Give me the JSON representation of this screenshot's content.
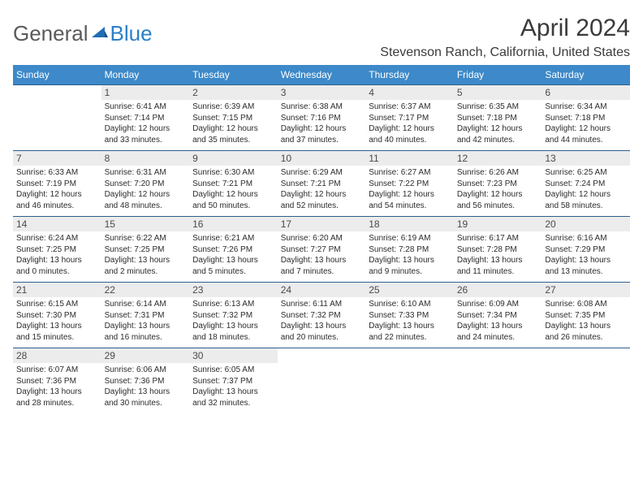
{
  "logo": {
    "text1": "General",
    "text2": "Blue"
  },
  "title": "April 2024",
  "location": "Stevenson Ranch, California, United States",
  "colors": {
    "header_bg": "#3d89c9",
    "header_text": "#ffffff",
    "daynum_bg": "#ececec",
    "daynum_border": "#2d5f8f",
    "body_text": "#2b2b2b",
    "logo_gray": "#5a5a5a",
    "logo_blue": "#2a7fc9"
  },
  "day_headers": [
    "Sunday",
    "Monday",
    "Tuesday",
    "Wednesday",
    "Thursday",
    "Friday",
    "Saturday"
  ],
  "weeks": [
    {
      "nums": [
        "",
        "1",
        "2",
        "3",
        "4",
        "5",
        "6"
      ],
      "cells": [
        null,
        {
          "sr": "Sunrise: 6:41 AM",
          "ss": "Sunset: 7:14 PM",
          "d1": "Daylight: 12 hours",
          "d2": "and 33 minutes."
        },
        {
          "sr": "Sunrise: 6:39 AM",
          "ss": "Sunset: 7:15 PM",
          "d1": "Daylight: 12 hours",
          "d2": "and 35 minutes."
        },
        {
          "sr": "Sunrise: 6:38 AM",
          "ss": "Sunset: 7:16 PM",
          "d1": "Daylight: 12 hours",
          "d2": "and 37 minutes."
        },
        {
          "sr": "Sunrise: 6:37 AM",
          "ss": "Sunset: 7:17 PM",
          "d1": "Daylight: 12 hours",
          "d2": "and 40 minutes."
        },
        {
          "sr": "Sunrise: 6:35 AM",
          "ss": "Sunset: 7:18 PM",
          "d1": "Daylight: 12 hours",
          "d2": "and 42 minutes."
        },
        {
          "sr": "Sunrise: 6:34 AM",
          "ss": "Sunset: 7:18 PM",
          "d1": "Daylight: 12 hours",
          "d2": "and 44 minutes."
        }
      ]
    },
    {
      "nums": [
        "7",
        "8",
        "9",
        "10",
        "11",
        "12",
        "13"
      ],
      "cells": [
        {
          "sr": "Sunrise: 6:33 AM",
          "ss": "Sunset: 7:19 PM",
          "d1": "Daylight: 12 hours",
          "d2": "and 46 minutes."
        },
        {
          "sr": "Sunrise: 6:31 AM",
          "ss": "Sunset: 7:20 PM",
          "d1": "Daylight: 12 hours",
          "d2": "and 48 minutes."
        },
        {
          "sr": "Sunrise: 6:30 AM",
          "ss": "Sunset: 7:21 PM",
          "d1": "Daylight: 12 hours",
          "d2": "and 50 minutes."
        },
        {
          "sr": "Sunrise: 6:29 AM",
          "ss": "Sunset: 7:21 PM",
          "d1": "Daylight: 12 hours",
          "d2": "and 52 minutes."
        },
        {
          "sr": "Sunrise: 6:27 AM",
          "ss": "Sunset: 7:22 PM",
          "d1": "Daylight: 12 hours",
          "d2": "and 54 minutes."
        },
        {
          "sr": "Sunrise: 6:26 AM",
          "ss": "Sunset: 7:23 PM",
          "d1": "Daylight: 12 hours",
          "d2": "and 56 minutes."
        },
        {
          "sr": "Sunrise: 6:25 AM",
          "ss": "Sunset: 7:24 PM",
          "d1": "Daylight: 12 hours",
          "d2": "and 58 minutes."
        }
      ]
    },
    {
      "nums": [
        "14",
        "15",
        "16",
        "17",
        "18",
        "19",
        "20"
      ],
      "cells": [
        {
          "sr": "Sunrise: 6:24 AM",
          "ss": "Sunset: 7:25 PM",
          "d1": "Daylight: 13 hours",
          "d2": "and 0 minutes."
        },
        {
          "sr": "Sunrise: 6:22 AM",
          "ss": "Sunset: 7:25 PM",
          "d1": "Daylight: 13 hours",
          "d2": "and 2 minutes."
        },
        {
          "sr": "Sunrise: 6:21 AM",
          "ss": "Sunset: 7:26 PM",
          "d1": "Daylight: 13 hours",
          "d2": "and 5 minutes."
        },
        {
          "sr": "Sunrise: 6:20 AM",
          "ss": "Sunset: 7:27 PM",
          "d1": "Daylight: 13 hours",
          "d2": "and 7 minutes."
        },
        {
          "sr": "Sunrise: 6:19 AM",
          "ss": "Sunset: 7:28 PM",
          "d1": "Daylight: 13 hours",
          "d2": "and 9 minutes."
        },
        {
          "sr": "Sunrise: 6:17 AM",
          "ss": "Sunset: 7:28 PM",
          "d1": "Daylight: 13 hours",
          "d2": "and 11 minutes."
        },
        {
          "sr": "Sunrise: 6:16 AM",
          "ss": "Sunset: 7:29 PM",
          "d1": "Daylight: 13 hours",
          "d2": "and 13 minutes."
        }
      ]
    },
    {
      "nums": [
        "21",
        "22",
        "23",
        "24",
        "25",
        "26",
        "27"
      ],
      "cells": [
        {
          "sr": "Sunrise: 6:15 AM",
          "ss": "Sunset: 7:30 PM",
          "d1": "Daylight: 13 hours",
          "d2": "and 15 minutes."
        },
        {
          "sr": "Sunrise: 6:14 AM",
          "ss": "Sunset: 7:31 PM",
          "d1": "Daylight: 13 hours",
          "d2": "and 16 minutes."
        },
        {
          "sr": "Sunrise: 6:13 AM",
          "ss": "Sunset: 7:32 PM",
          "d1": "Daylight: 13 hours",
          "d2": "and 18 minutes."
        },
        {
          "sr": "Sunrise: 6:11 AM",
          "ss": "Sunset: 7:32 PM",
          "d1": "Daylight: 13 hours",
          "d2": "and 20 minutes."
        },
        {
          "sr": "Sunrise: 6:10 AM",
          "ss": "Sunset: 7:33 PM",
          "d1": "Daylight: 13 hours",
          "d2": "and 22 minutes."
        },
        {
          "sr": "Sunrise: 6:09 AM",
          "ss": "Sunset: 7:34 PM",
          "d1": "Daylight: 13 hours",
          "d2": "and 24 minutes."
        },
        {
          "sr": "Sunrise: 6:08 AM",
          "ss": "Sunset: 7:35 PM",
          "d1": "Daylight: 13 hours",
          "d2": "and 26 minutes."
        }
      ]
    },
    {
      "nums": [
        "28",
        "29",
        "30",
        "",
        "",
        "",
        ""
      ],
      "cells": [
        {
          "sr": "Sunrise: 6:07 AM",
          "ss": "Sunset: 7:36 PM",
          "d1": "Daylight: 13 hours",
          "d2": "and 28 minutes."
        },
        {
          "sr": "Sunrise: 6:06 AM",
          "ss": "Sunset: 7:36 PM",
          "d1": "Daylight: 13 hours",
          "d2": "and 30 minutes."
        },
        {
          "sr": "Sunrise: 6:05 AM",
          "ss": "Sunset: 7:37 PM",
          "d1": "Daylight: 13 hours",
          "d2": "and 32 minutes."
        },
        null,
        null,
        null,
        null
      ]
    }
  ]
}
